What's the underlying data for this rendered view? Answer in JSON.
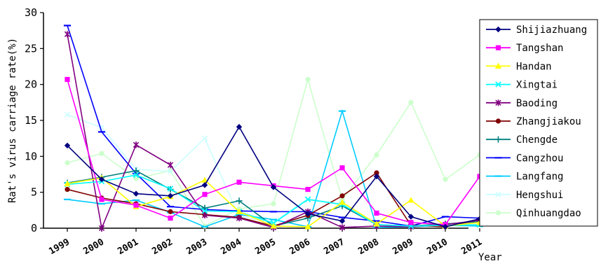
{
  "chart_data": {
    "type": "line",
    "ylabel": "Rat's virus carriage rate(%)",
    "xlabel": "Year",
    "ylim": [
      0,
      30
    ],
    "yticks": [
      0,
      5,
      10,
      15,
      20,
      25,
      30
    ],
    "categories": [
      "1999",
      "2000",
      "2001",
      "2002",
      "2003",
      "2004",
      "2005",
      "2006",
      "2007",
      "2008",
      "2009",
      "2010",
      "2011"
    ],
    "legend_position": "right",
    "grid": false,
    "series": [
      {
        "name": "Shijiazhuang",
        "color": "#000080",
        "marker": "diamond",
        "values": [
          11.5,
          6.8,
          4.8,
          4.5,
          6.0,
          14.1,
          5.7,
          2.0,
          1.0,
          7.2,
          1.6,
          0.2,
          1.3
        ]
      },
      {
        "name": "Tangshan",
        "color": "#ff00ff",
        "marker": "square",
        "values": [
          20.7,
          4.0,
          3.2,
          1.4,
          4.7,
          6.4,
          5.9,
          5.4,
          8.4,
          2.1,
          0.8,
          0.5,
          7.2
        ]
      },
      {
        "name": "Handan",
        "color": "#ffff00",
        "marker": "triangle",
        "values": [
          6.2,
          7.0,
          3.0,
          4.4,
          6.7,
          2.3,
          0.3,
          0.2,
          3.6,
          0.6,
          3.9,
          0.3,
          0.8
        ]
      },
      {
        "name": "Xingtai",
        "color": "#00ffff",
        "marker": "x",
        "values": [
          6.1,
          6.5,
          7.4,
          5.5,
          2.4,
          2.3,
          0.7,
          4.0,
          3.3,
          0.5,
          0.3,
          0.4,
          0.5
        ]
      },
      {
        "name": "Baoding",
        "color": "#800080",
        "marker": "star",
        "values": [
          27.0,
          0.0,
          11.6,
          8.8,
          1.8,
          1.4,
          0.1,
          2.3,
          0.1,
          0.3,
          0.2,
          0.5,
          1.1
        ]
      },
      {
        "name": "Zhangjiakou",
        "color": "#800000",
        "marker": "circle",
        "values": [
          5.4,
          4.2,
          3.4,
          2.3,
          1.9,
          1.5,
          0.3,
          1.8,
          4.5,
          7.7,
          0.4,
          0.2,
          1.2
        ]
      },
      {
        "name": "Chengde",
        "color": "#008080",
        "marker": "plus",
        "values": [
          6.3,
          7.1,
          8.0,
          5.4,
          2.8,
          3.8,
          0.3,
          1.4,
          3.1,
          0.5,
          0.3,
          0.6,
          0.9
        ]
      },
      {
        "name": "Cangzhou",
        "color": "#0000ff",
        "marker": "dash",
        "values": [
          28.2,
          13.4,
          7.6,
          3.0,
          2.6,
          2.4,
          2.3,
          2.3,
          1.5,
          1.0,
          0.3,
          1.6,
          1.4
        ]
      },
      {
        "name": "Langfang",
        "color": "#00ccff",
        "marker": "dash",
        "values": [
          4.0,
          3.4,
          3.9,
          2.2,
          0.2,
          1.9,
          1.2,
          0.2,
          16.3,
          0.1,
          0.2,
          0.4,
          0.3
        ]
      },
      {
        "name": "Hengshui",
        "color": "#ccffff",
        "marker": "x",
        "values": [
          15.8,
          14.0,
          8.2,
          7.9,
          12.5,
          1.6,
          0.9,
          4.1,
          3.4,
          0.5,
          0.3,
          0.3,
          0.4
        ]
      },
      {
        "name": "Qinhuangdao",
        "color": "#ccffcc",
        "marker": "circle",
        "values": [
          9.1,
          10.4,
          6.9,
          8.0,
          0.3,
          2.7,
          3.4,
          20.7,
          4.0,
          10.2,
          17.5,
          6.8,
          10.2
        ]
      }
    ]
  }
}
